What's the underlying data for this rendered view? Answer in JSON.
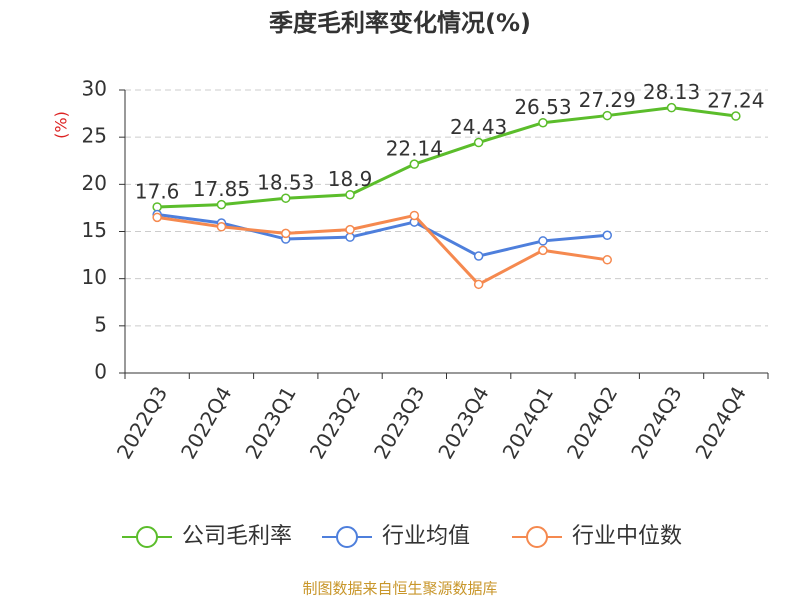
{
  "chart_data": {
    "type": "line",
    "title": "季度毛利率变化情况(%)",
    "y_label": "(%)",
    "categories": [
      "2022Q3",
      "2022Q4",
      "2023Q1",
      "2023Q2",
      "2023Q3",
      "2023Q4",
      "2024Q1",
      "2024Q2",
      "2024Q3",
      "2024Q4"
    ],
    "series": [
      {
        "name": "公司毛利率",
        "color": "#5bbd2b",
        "values": [
          17.6,
          17.85,
          18.53,
          18.9,
          22.14,
          24.43,
          26.53,
          27.29,
          28.13,
          27.24
        ],
        "show_labels": true
      },
      {
        "name": "行业均值",
        "color": "#4e7fdc",
        "values": [
          16.8,
          15.9,
          14.2,
          14.4,
          16.0,
          12.4,
          14.0,
          14.6,
          null,
          null
        ]
      },
      {
        "name": "行业中位数",
        "color": "#f5894f",
        "values": [
          16.5,
          15.5,
          14.8,
          15.2,
          16.7,
          9.4,
          13.0,
          12.0,
          null,
          null
        ]
      }
    ],
    "ylim": [
      0,
      30
    ],
    "yticks": [
      0,
      5,
      10,
      15,
      20,
      25,
      30
    ],
    "grid": true,
    "source": "制图数据来自恒生聚源数据库"
  }
}
